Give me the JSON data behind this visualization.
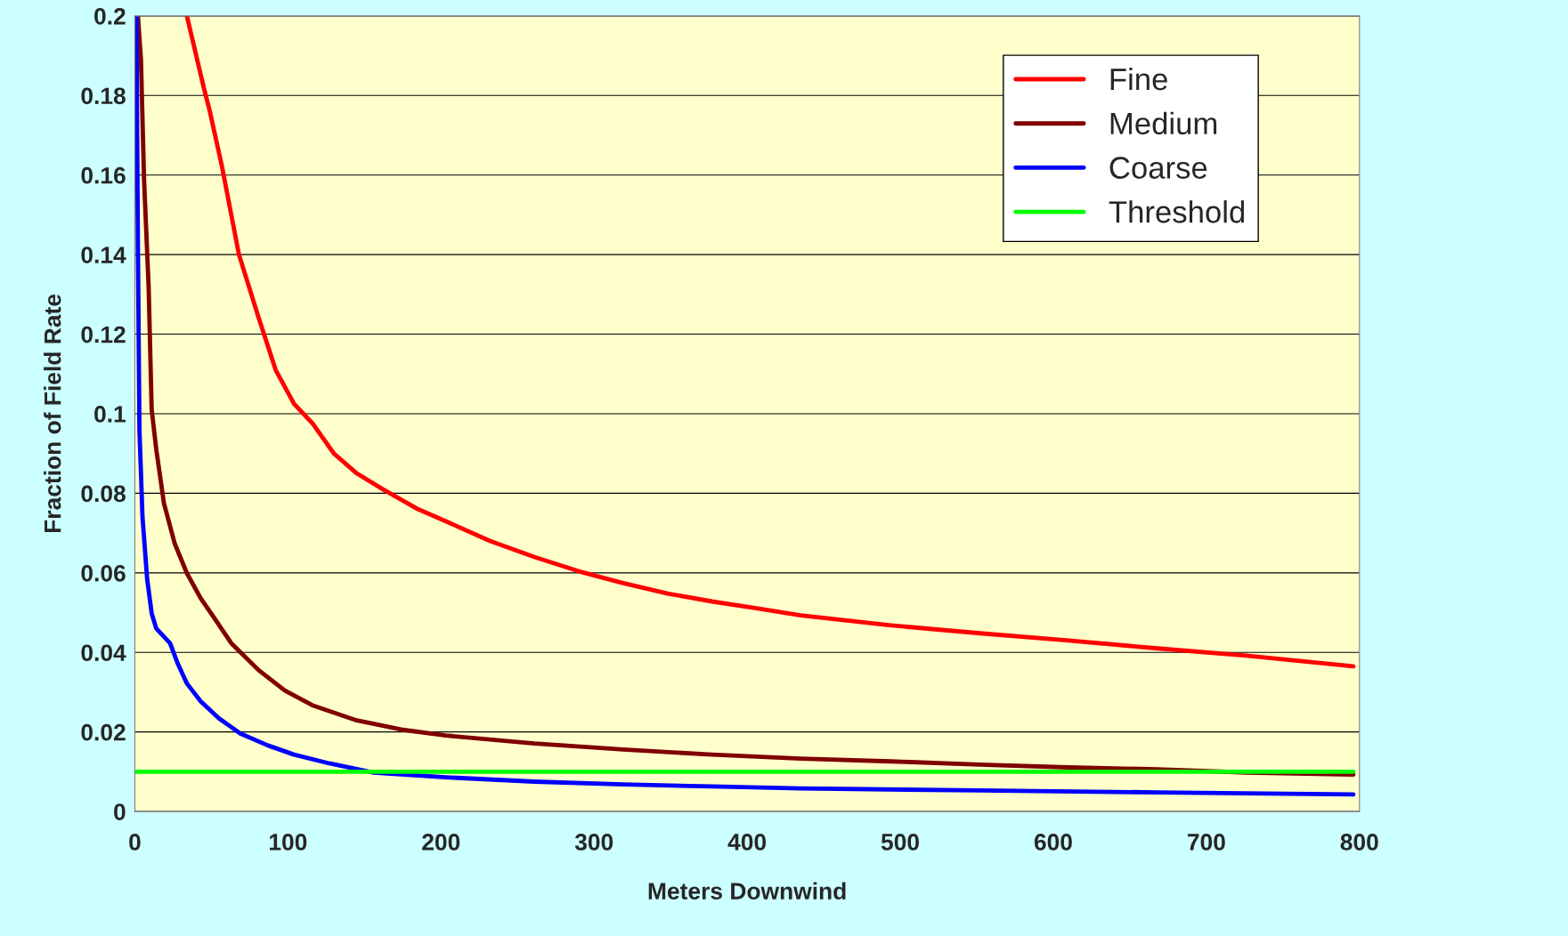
{
  "chart_data": {
    "type": "line",
    "xlabel": "Meters Downwind",
    "ylabel": "Fraction of Field Rate",
    "xlim": [
      0,
      800
    ],
    "xticks": [
      0,
      100,
      200,
      300,
      400,
      500,
      600,
      700,
      800
    ],
    "ylim": [
      0,
      0.2
    ],
    "yticks": [
      0,
      0.02,
      0.04,
      0.06,
      0.08,
      0.1,
      0.12,
      0.14,
      0.16,
      0.18,
      0.2
    ],
    "grid": "y",
    "legend": "top right",
    "marker": "none",
    "line_style": "solid",
    "series": [
      {
        "name": "Fine",
        "color": "#ff0000",
        "x": [
          34,
          45,
          49,
          57,
          68,
          81,
          92,
          104,
          116,
          130,
          145,
          162,
          185,
          203,
          232,
          261,
          290,
          319,
          348,
          377,
          406,
          435,
          494,
          552,
          610,
          668,
          726,
          796
        ],
        "values": [
          0.2,
          0.182,
          0.176,
          0.162,
          0.14,
          0.124,
          0.111,
          0.1025,
          0.0976,
          0.09,
          0.085,
          0.081,
          0.076,
          0.073,
          0.068,
          0.064,
          0.0604,
          0.0574,
          0.0548,
          0.0528,
          0.0511,
          0.0493,
          0.0468,
          0.0448,
          0.043,
          0.041,
          0.0392,
          0.0365
        ]
      },
      {
        "name": "Medium",
        "color": "#800000",
        "x": [
          2,
          4,
          6,
          9,
          11,
          14,
          19,
          26,
          34,
          43,
          52,
          63,
          81,
          98,
          116,
          145,
          174,
          203,
          261,
          319,
          377,
          435,
          494,
          552,
          610,
          668,
          726,
          796
        ],
        "values": [
          0.2,
          0.189,
          0.159,
          0.132,
          0.101,
          0.091,
          0.0775,
          0.0674,
          0.0599,
          0.0536,
          0.0486,
          0.0423,
          0.0355,
          0.0304,
          0.0267,
          0.0229,
          0.0206,
          0.0191,
          0.0171,
          0.0156,
          0.0143,
          0.0133,
          0.0126,
          0.0118,
          0.0111,
          0.0106,
          0.0098,
          0.0093
        ]
      },
      {
        "name": "Coarse",
        "color": "#0000ff",
        "x": [
          1,
          2,
          3,
          5,
          8,
          11,
          14,
          23,
          28,
          34,
          43,
          55,
          69,
          87,
          104,
          127,
          156,
          203,
          261,
          319,
          377,
          435,
          552,
          668,
          796
        ],
        "values": [
          0.2,
          0.142,
          0.096,
          0.074,
          0.0586,
          0.0498,
          0.046,
          0.0423,
          0.0372,
          0.0322,
          0.0277,
          0.0234,
          0.0196,
          0.0166,
          0.0143,
          0.0121,
          0.0098,
          0.0086,
          0.0075,
          0.0068,
          0.0063,
          0.0058,
          0.0053,
          0.0048,
          0.0043
        ]
      },
      {
        "name": "Threshold",
        "color": "#00ff00",
        "x": [
          0,
          796
        ],
        "values": [
          0.01,
          0.01
        ]
      }
    ]
  }
}
